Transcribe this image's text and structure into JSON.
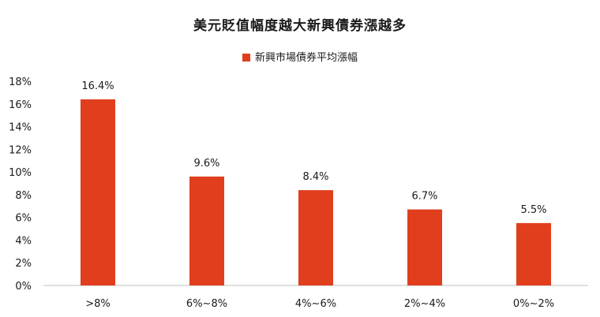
{
  "chart_data": {
    "type": "bar",
    "title": "美元貶值幅度越大新興債券漲越多",
    "categories": [
      ">8%",
      "6%~8%",
      "4%~6%",
      "2%~4%",
      "0%~2%"
    ],
    "series": [
      {
        "name": "新興市場債券平均漲幅",
        "values": [
          16.4,
          9.6,
          8.4,
          6.7,
          5.5
        ]
      }
    ],
    "data_labels": [
      "16.4%",
      "9.6%",
      "8.4%",
      "6.7%",
      "5.5%"
    ],
    "ylim": [
      0,
      18
    ],
    "yticks": [
      "0%",
      "2%",
      "4%",
      "6%",
      "8%",
      "10%",
      "12%",
      "14%",
      "16%",
      "18%"
    ],
    "grid": false,
    "legend_position": "top",
    "colors": {
      "bar": "#e03e1d",
      "axis": "#bfbfbf"
    }
  }
}
